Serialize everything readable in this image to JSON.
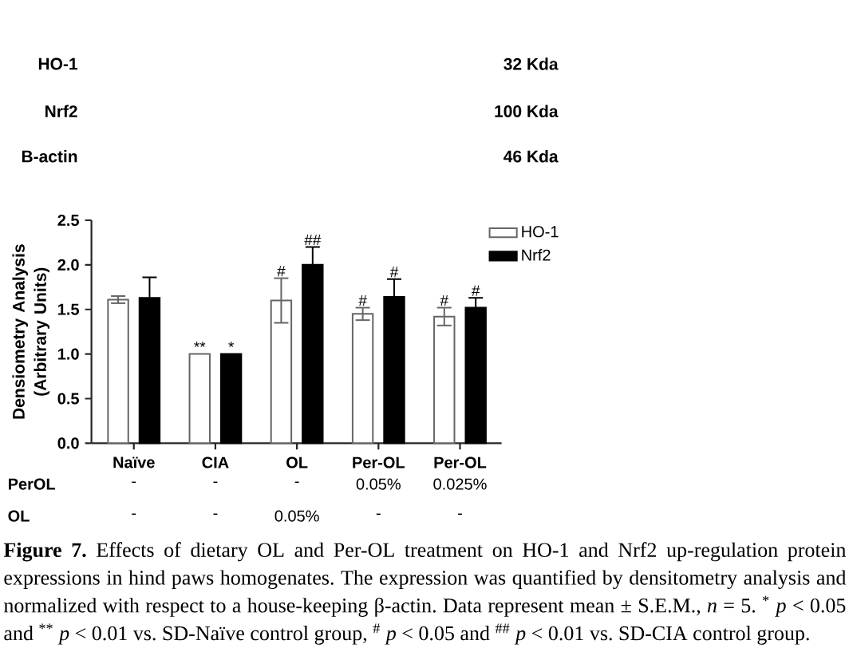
{
  "chart_data": {
    "type": "bar",
    "categories": [
      "Naïve",
      "CIA",
      "OL",
      "Per-OL",
      "Per-OL"
    ],
    "series": [
      {
        "name": "HO-1",
        "color": "#ffffff",
        "values": [
          1.61,
          1.0,
          1.6,
          1.45,
          1.42
        ],
        "errors": [
          0.04,
          null,
          0.25,
          0.07,
          0.1
        ],
        "value_labels": [
          null,
          "**",
          "#",
          "#",
          "#"
        ]
      },
      {
        "name": "Nrf2",
        "color": "#000000",
        "values": [
          1.63,
          1.0,
          2.0,
          1.64,
          1.52
        ],
        "errors": [
          0.23,
          null,
          0.2,
          0.2,
          0.11
        ],
        "value_labels": [
          null,
          "*",
          "##",
          "#",
          "#"
        ]
      }
    ],
    "ylabel": "Densiometry Analysis (Arbitrary Units)",
    "ylim": [
      0,
      2.5
    ],
    "yticks": [
      {
        "value": 0,
        "label": "0.0"
      },
      0.5,
      {
        "value": 1,
        "label": "1.0"
      },
      1.5,
      {
        "value": 2,
        "label": "2.0"
      },
      2.5
    ],
    "legend": "top right",
    "annotations": [
      "HO-1",
      "32 Kda",
      "Nrf2",
      "100 Kda",
      "B-actin",
      "46 Kda",
      "PerOL",
      "-",
      "-",
      "-",
      "0.05%",
      "0.025%",
      "OL",
      "-",
      "-",
      "0.05%",
      "-",
      "-",
      "**Figure 7.** Effects of dietary OL and Per-OL treatment on HO-1 and Nrf2 up-regulation protein expressions in hind paws homogenates. The expression was quantified by densitometry analysis and normalized with respect to a house-keeping β-actin. Data represent mean ± S.E.M., *n* = 5. $^{*}$ *p* < 0.05 and $^{**}$ *p* < 0.01 vs. SD-Naïve control group, $^{#}$ *p* < 0.05 and $^{##}$ *p* < 0.01 vs. SD-CIA control group."
    ]
  }
}
